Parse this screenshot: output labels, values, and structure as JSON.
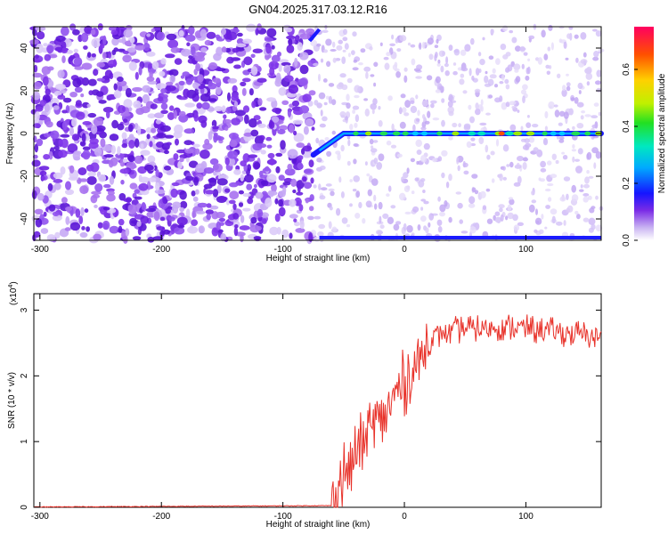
{
  "title": "GN04.2025.317.03.12.R16",
  "chart_data": [
    {
      "type": "heatmap",
      "xlabel": "Height of straight line (km)",
      "ylabel": "Frequency (Hz)",
      "xlim": [
        -305,
        162
      ],
      "ylim": [
        -50,
        50
      ],
      "x_ticks": [
        -300,
        -200,
        -100,
        0,
        100
      ],
      "y_ticks": [
        -40,
        -20,
        0,
        20,
        40
      ],
      "x_tick_labels": [
        "-300",
        "-200",
        "-100",
        "0",
        "100"
      ],
      "y_tick_labels": [
        "-40",
        "-20",
        "0",
        "20",
        "40"
      ],
      "colorbar": {
        "label": "Normalized spectral amplitude",
        "range": [
          0,
          0.75
        ],
        "ticks": [
          0.0,
          0.2,
          0.4,
          0.6
        ],
        "tick_labels": [
          "0.0",
          "0.2",
          "0.4",
          "0.6"
        ]
      },
      "features": {
        "noise_dense_until_km": -75,
        "signal_line_frequency_hz": 0,
        "signal_start_km": -75,
        "ramp_start": {
          "x": -75,
          "y": -10
        },
        "ramp_end": {
          "x": -50,
          "y": 0
        },
        "hot_spot_km": 80
      }
    },
    {
      "type": "line",
      "xlabel": "Height of straight line (km)",
      "ylabel": "SNR (10 * v/v)",
      "exponent_label": "(x10",
      "exponent_power": "4",
      "exponent_close": ")",
      "xlim": [
        -305,
        162
      ],
      "ylim": [
        0,
        3.25
      ],
      "x_ticks": [
        -300,
        -200,
        -100,
        0,
        100
      ],
      "y_ticks": [
        0,
        1,
        2,
        3
      ],
      "x_tick_labels": [
        "-300",
        "-200",
        "-100",
        "0",
        "100"
      ],
      "y_tick_labels": [
        "0",
        "1",
        "2",
        "3"
      ],
      "color": "#e8322a",
      "series_trend": [
        {
          "x": -305,
          "y": 0.0
        },
        {
          "x": -60,
          "y": 0.02
        },
        {
          "x": -50,
          "y": 0.5
        },
        {
          "x": -40,
          "y": 0.8
        },
        {
          "x": -30,
          "y": 1.1
        },
        {
          "x": -20,
          "y": 1.35
        },
        {
          "x": -10,
          "y": 1.6
        },
        {
          "x": 0,
          "y": 1.9
        },
        {
          "x": 10,
          "y": 2.2
        },
        {
          "x": 20,
          "y": 2.5
        },
        {
          "x": 30,
          "y": 2.65
        },
        {
          "x": 50,
          "y": 2.72
        },
        {
          "x": 80,
          "y": 2.75
        },
        {
          "x": 120,
          "y": 2.68
        },
        {
          "x": 162,
          "y": 2.6
        }
      ]
    }
  ]
}
